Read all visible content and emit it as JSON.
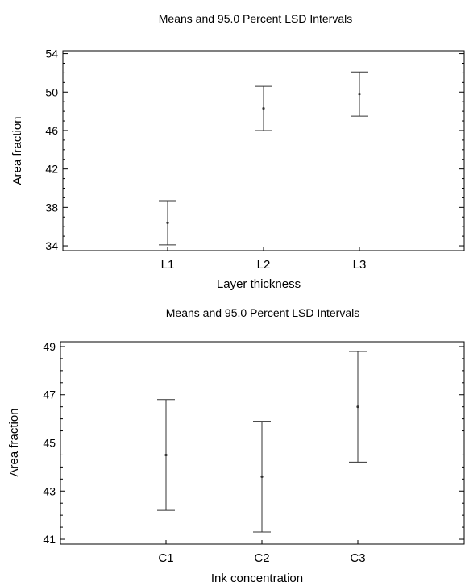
{
  "chart_data": [
    {
      "type": "errorbar",
      "title": "Means and 95.0 Percent LSD Intervals",
      "xlabel": "Layer thickness",
      "ylabel": "Area fraction",
      "categories": [
        "L1",
        "L2",
        "L3"
      ],
      "means": [
        36.4,
        48.3,
        49.8
      ],
      "lower": [
        34.1,
        46.0,
        47.5
      ],
      "upper": [
        38.7,
        50.6,
        52.1
      ],
      "ylim": [
        33.5,
        54.3
      ],
      "yticks": [
        34,
        38,
        42,
        46,
        50,
        54
      ],
      "ytick_labels": [
        "34",
        "38",
        "42",
        "46",
        "50",
        "54"
      ],
      "grid": false,
      "colors": {
        "frame": "#000000",
        "marks": "#333333"
      }
    },
    {
      "type": "errorbar",
      "title": "Means and 95.0 Percent LSD Intervals",
      "xlabel": "Ink concentration",
      "ylabel": "Area fraction",
      "categories": [
        "C1",
        "C2",
        "C3"
      ],
      "means": [
        44.5,
        43.6,
        46.5
      ],
      "lower": [
        42.2,
        41.3,
        44.2
      ],
      "upper": [
        46.8,
        45.9,
        48.8
      ],
      "ylim": [
        40.8,
        49.2
      ],
      "yticks": [
        41,
        43,
        45,
        47,
        49
      ],
      "ytick_labels": [
        "41",
        "43",
        "45",
        "47",
        "49"
      ],
      "grid": false,
      "colors": {
        "frame": "#000000",
        "marks": "#333333"
      }
    }
  ]
}
